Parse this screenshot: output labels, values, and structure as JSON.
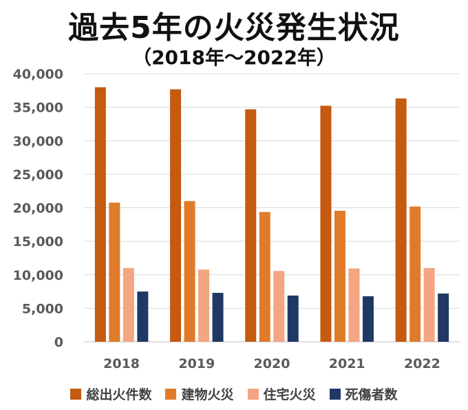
{
  "chart_data": {
    "type": "bar",
    "title": "過去5年の火災発生状況",
    "subtitle": "（2018年～2022年）",
    "categories": [
      "2018",
      "2019",
      "2020",
      "2021",
      "2022"
    ],
    "ylim": [
      0,
      40000
    ],
    "yticks": [
      "0",
      "5,000",
      "10,000",
      "15,000",
      "20,000",
      "25,000",
      "30,000",
      "35,000",
      "40,000"
    ],
    "ytick_values": [
      0,
      5000,
      10000,
      15000,
      20000,
      25000,
      30000,
      35000,
      40000
    ],
    "grid": true,
    "legend_position": "bottom",
    "series": [
      {
        "name": "総出火件数",
        "color": "#c55a11",
        "values": [
          37981,
          37683,
          34691,
          35222,
          36314
        ]
      },
      {
        "name": "建物火災",
        "color": "#e07b2a",
        "values": [
          20764,
          21003,
          19365,
          19549,
          20185
        ]
      },
      {
        "name": "住宅火災",
        "color": "#f4a582",
        "values": [
          11000,
          10784,
          10564,
          10937,
          10998
        ]
      },
      {
        "name": "死傷者数",
        "color": "#203864",
        "values": [
          7500,
          7300,
          6900,
          6800,
          7200
        ]
      }
    ]
  }
}
